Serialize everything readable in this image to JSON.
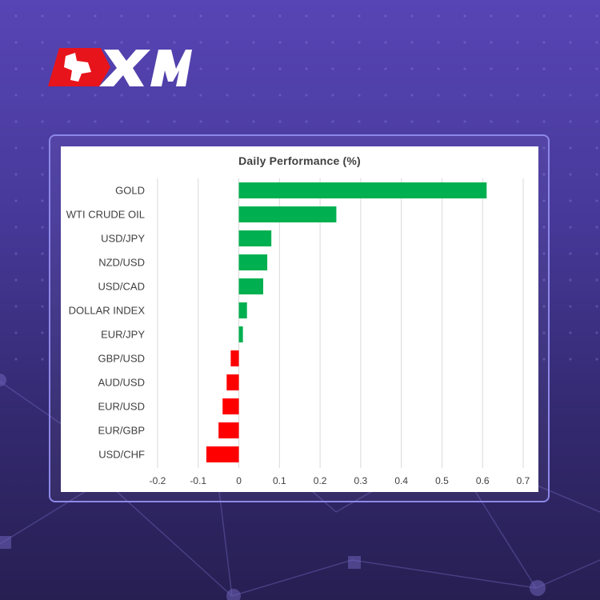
{
  "brand": {
    "logo_text": "XM",
    "colors": {
      "red": "#e8141c",
      "white": "#ffffff"
    }
  },
  "background": {
    "gradient_top": "#5745b5",
    "gradient_bottom": "#271f52"
  },
  "chart_data": {
    "type": "bar",
    "orientation": "horizontal",
    "title": "Daily Performance  (%)",
    "categories": [
      "GOLD",
      "WTI CRUDE OIL",
      "USD/JPY",
      "NZD/USD",
      "USD/CAD",
      "DOLLAR INDEX",
      "EUR/JPY",
      "GBP/USD",
      "AUD/USD",
      "EUR/USD",
      "EUR/GBP",
      "USD/CHF"
    ],
    "values": [
      0.61,
      0.24,
      0.08,
      0.07,
      0.06,
      0.02,
      0.01,
      -0.02,
      -0.03,
      -0.04,
      -0.05,
      -0.08
    ],
    "xlim": [
      -0.2,
      0.7
    ],
    "xticks": [
      "-0.2",
      "-0.1",
      "0",
      "0.1",
      "0.2",
      "0.3",
      "0.4",
      "0.5",
      "0.6",
      "0.7"
    ],
    "grid": true,
    "legend": "none",
    "colors": {
      "positive": "#00b050",
      "negative": "#ff0000",
      "grid": "#d9d9d9",
      "text": "#404040"
    }
  }
}
